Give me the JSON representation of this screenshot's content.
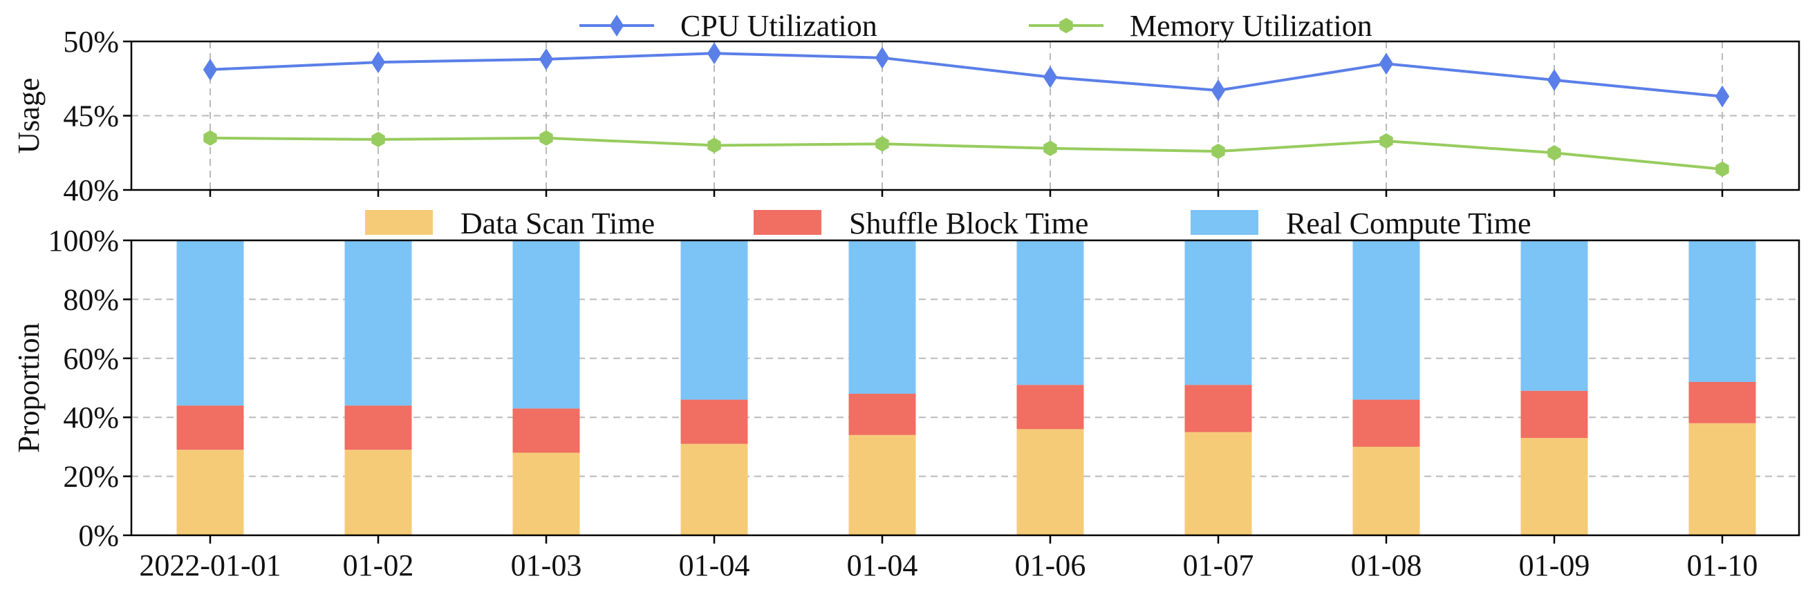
{
  "chart_data": [
    {
      "type": "line",
      "ylabel": "Usage",
      "ylim": [
        40,
        50
      ],
      "yticks": [
        40,
        45,
        50
      ],
      "ytick_labels": [
        "40%",
        "45%",
        "50%"
      ],
      "grid": true,
      "legend_position": "top-center",
      "categories": [
        "2022-01-01",
        "01-02",
        "01-03",
        "01-04",
        "01-04",
        "01-06",
        "01-07",
        "01-08",
        "01-09",
        "01-10"
      ],
      "series": [
        {
          "name": "CPU Utilization",
          "color": "#5b7fe8",
          "marker": "diamond",
          "values": [
            48.1,
            48.6,
            48.8,
            49.2,
            48.9,
            47.6,
            46.7,
            48.5,
            47.4,
            46.3
          ]
        },
        {
          "name": "Memory Utilization",
          "color": "#97cc5e",
          "marker": "hexagon",
          "values": [
            43.5,
            43.4,
            43.5,
            43.0,
            43.1,
            42.8,
            42.6,
            43.3,
            42.5,
            41.4
          ]
        }
      ]
    },
    {
      "type": "bar",
      "stacked": true,
      "ylabel": "Proportion",
      "ylim": [
        0,
        100
      ],
      "yticks": [
        0,
        20,
        40,
        60,
        80,
        100
      ],
      "ytick_labels": [
        "0%",
        "20%",
        "40%",
        "60%",
        "80%",
        "100%"
      ],
      "grid": true,
      "legend_position": "top-center",
      "categories": [
        "2022-01-01",
        "01-02",
        "01-03",
        "01-04",
        "01-04",
        "01-06",
        "01-07",
        "01-08",
        "01-09",
        "01-10"
      ],
      "series": [
        {
          "name": "Data Scan Time",
          "color": "#f6cb78",
          "values": [
            29,
            29,
            28,
            31,
            34,
            36,
            35,
            30,
            33,
            38
          ]
        },
        {
          "name": "Shuffle Block Time",
          "color": "#f06e62",
          "values": [
            15,
            15,
            15,
            15,
            14,
            15,
            16,
            16,
            16,
            14
          ]
        },
        {
          "name": "Real Compute Time",
          "color": "#7cc3f6",
          "values": [
            56,
            56,
            57,
            54,
            52,
            49,
            49,
            54,
            51,
            48
          ]
        }
      ]
    }
  ]
}
